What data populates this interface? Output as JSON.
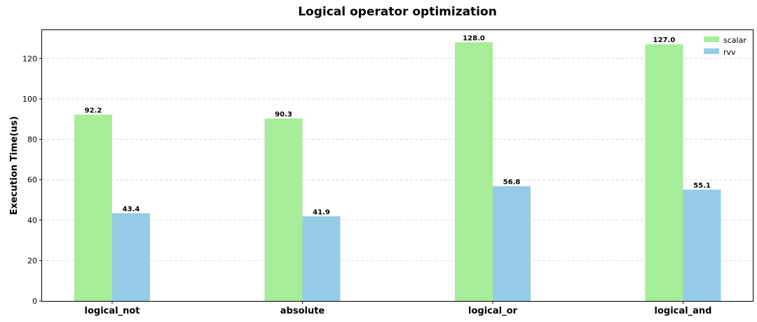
{
  "chart_data": {
    "type": "bar",
    "title": "Logical operator optimization",
    "xlabel": "",
    "ylabel": "Execution Time(us)",
    "categories": [
      "logical_not",
      "absolute",
      "logical_or",
      "logical_and"
    ],
    "series": [
      {
        "name": "scalar",
        "color": "#a6ec99",
        "values": [
          92.2,
          90.3,
          128.0,
          127.0
        ],
        "labels": [
          "92.2",
          "90.3",
          "128.0",
          "127.0"
        ]
      },
      {
        "name": "rvv",
        "color": "#96cbe8",
        "values": [
          43.4,
          41.9,
          56.8,
          55.1
        ],
        "labels": [
          "43.4",
          "41.9",
          "56.8",
          "55.1"
        ]
      }
    ],
    "ylim": [
      0,
      134
    ],
    "yticks": [
      0,
      20,
      40,
      60,
      80,
      100,
      120
    ],
    "ytick_labels": [
      "0",
      "20",
      "40",
      "60",
      "80",
      "100",
      "120"
    ],
    "grid": true,
    "legend_position": "top-right"
  }
}
